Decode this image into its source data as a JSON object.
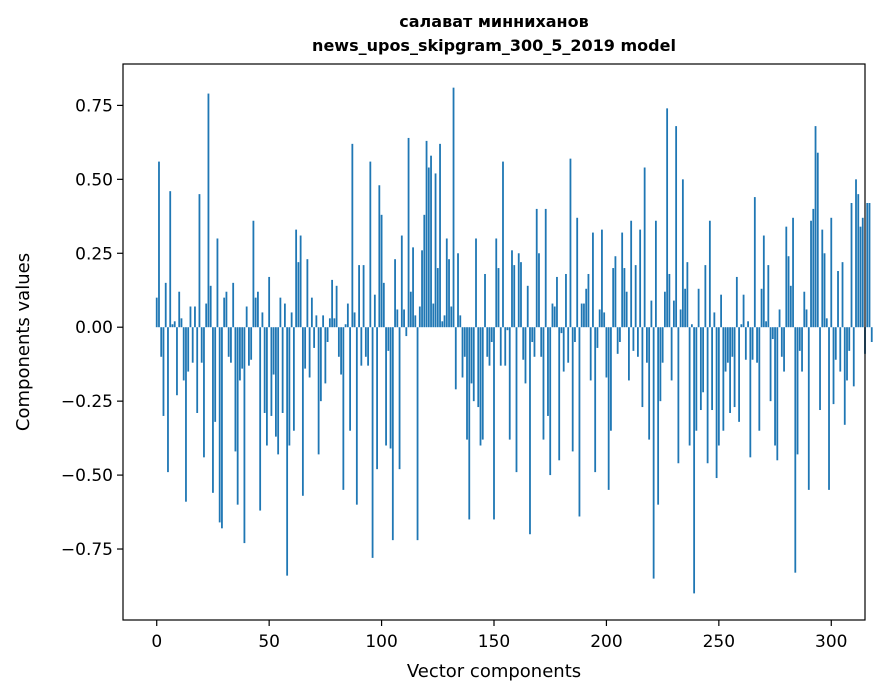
{
  "chart_data": {
    "type": "bar",
    "title_line1": "салават минниханов",
    "title_line2": "news_upos_skipgram_300_5_2019 model",
    "xlabel": "Vector components",
    "ylabel": "Components values",
    "xlim": [
      -15,
      315
    ],
    "ylim": [
      -0.99,
      0.89
    ],
    "x_ticks": [
      0,
      50,
      100,
      150,
      200,
      250,
      300
    ],
    "x_tick_labels": [
      "0",
      "50",
      "100",
      "150",
      "200",
      "250",
      "300"
    ],
    "y_ticks": [
      0.75,
      0.5,
      0.25,
      0.0,
      -0.25,
      -0.5,
      -0.75
    ],
    "y_tick_labels": [
      "0.75",
      "0.50",
      "0.25",
      "0.00",
      "−0.25",
      "−0.50",
      "−0.75"
    ],
    "grid": false,
    "bar_color": "#1f77b4",
    "x_start": 0,
    "values": [
      0.1,
      0.56,
      -0.1,
      -0.3,
      0.15,
      -0.49,
      0.46,
      0.01,
      0.02,
      -0.23,
      0.12,
      0.03,
      -0.18,
      -0.59,
      -0.15,
      0.07,
      -0.12,
      0.07,
      -0.29,
      0.45,
      -0.12,
      -0.44,
      0.08,
      0.79,
      0.14,
      -0.56,
      -0.32,
      0.3,
      -0.66,
      -0.68,
      0.1,
      0.12,
      -0.1,
      -0.12,
      0.15,
      -0.42,
      -0.6,
      -0.18,
      -0.14,
      -0.73,
      0.07,
      -0.13,
      -0.11,
      0.36,
      0.1,
      0.12,
      -0.62,
      0.05,
      -0.29,
      -0.4,
      0.17,
      -0.3,
      -0.16,
      -0.37,
      -0.43,
      0.1,
      -0.29,
      0.08,
      -0.84,
      -0.4,
      0.05,
      -0.35,
      0.33,
      0.22,
      0.31,
      -0.57,
      -0.14,
      0.23,
      -0.17,
      0.1,
      -0.07,
      0.04,
      -0.43,
      -0.25,
      0.04,
      -0.19,
      -0.05,
      0.03,
      0.16,
      0.03,
      0.14,
      -0.1,
      -0.16,
      -0.55,
      0.01,
      0.08,
      -0.35,
      0.62,
      0.05,
      -0.6,
      0.21,
      -0.13,
      0.21,
      -0.1,
      -0.13,
      0.56,
      -0.78,
      0.11,
      -0.48,
      0.48,
      0.38,
      0.15,
      -0.4,
      -0.08,
      -0.41,
      -0.72,
      0.23,
      0.06,
      -0.48,
      0.31,
      0.06,
      -0.03,
      0.64,
      0.12,
      0.27,
      0.04,
      -0.72,
      0.07,
      0.26,
      0.38,
      0.63,
      0.54,
      0.58,
      0.08,
      0.52,
      0.2,
      0.62,
      0.02,
      0.04,
      0.3,
      0.23,
      0.07,
      0.81,
      -0.21,
      0.25,
      0.04,
      -0.17,
      -0.1,
      -0.38,
      -0.65,
      -0.19,
      -0.25,
      0.3,
      -0.27,
      -0.4,
      -0.38,
      0.18,
      -0.1,
      -0.13,
      -0.05,
      -0.65,
      0.3,
      0.2,
      -0.13,
      0.56,
      -0.13,
      -0.01,
      -0.38,
      0.26,
      0.21,
      -0.49,
      0.25,
      0.22,
      -0.11,
      -0.19,
      0.14,
      -0.7,
      -0.05,
      -0.1,
      0.4,
      0.25,
      -0.1,
      -0.38,
      0.4,
      -0.3,
      -0.5,
      0.08,
      0.07,
      0.17,
      -0.45,
      -0.02,
      -0.15,
      0.18,
      -0.12,
      0.57,
      -0.42,
      -0.05,
      0.37,
      -0.64,
      0.08,
      0.08,
      0.13,
      0.18,
      -0.18,
      0.32,
      -0.49,
      -0.07,
      0.06,
      0.33,
      0.05,
      -0.17,
      -0.55,
      -0.35,
      0.2,
      0.24,
      -0.09,
      -0.05,
      0.32,
      0.2,
      0.12,
      -0.18,
      0.36,
      -0.08,
      0.21,
      -0.1,
      0.33,
      -0.27,
      0.54,
      -0.12,
      -0.38,
      0.09,
      -0.85,
      0.36,
      -0.6,
      -0.25,
      -0.12,
      0.12,
      0.74,
      0.18,
      -0.18,
      0.09,
      0.68,
      -0.46,
      0.06,
      0.5,
      0.13,
      0.22,
      -0.4,
      0.01,
      -0.9,
      -0.35,
      0.13,
      -0.28,
      -0.22,
      0.21,
      -0.46,
      0.36,
      -0.28,
      0.05,
      -0.51,
      -0.4,
      0.11,
      -0.35,
      -0.15,
      -0.12,
      -0.29,
      -0.1,
      -0.27,
      0.17,
      -0.32,
      0.01,
      0.11,
      -0.11,
      0.02,
      -0.44,
      -0.11,
      0.44,
      -0.12,
      -0.35,
      0.13,
      0.31,
      0.02,
      0.21,
      -0.25,
      -0.04,
      -0.4,
      -0.45,
      0.06,
      -0.1,
      -0.15,
      0.34,
      0.24,
      0.14,
      0.37,
      -0.83,
      -0.43,
      -0.08,
      -0.15,
      0.12,
      0.06,
      -0.55,
      0.36,
      0.4,
      0.68,
      0.59,
      -0.28,
      0.33,
      0.25,
      0.03,
      -0.55,
      0.37,
      -0.26,
      -0.11,
      0.19,
      -0.15,
      0.22,
      -0.33,
      -0.18,
      -0.08,
      0.42,
      -0.2,
      0.5,
      0.45,
      0.34,
      0.37,
      -0.09,
      0.42,
      0.42,
      -0.05
    ]
  }
}
